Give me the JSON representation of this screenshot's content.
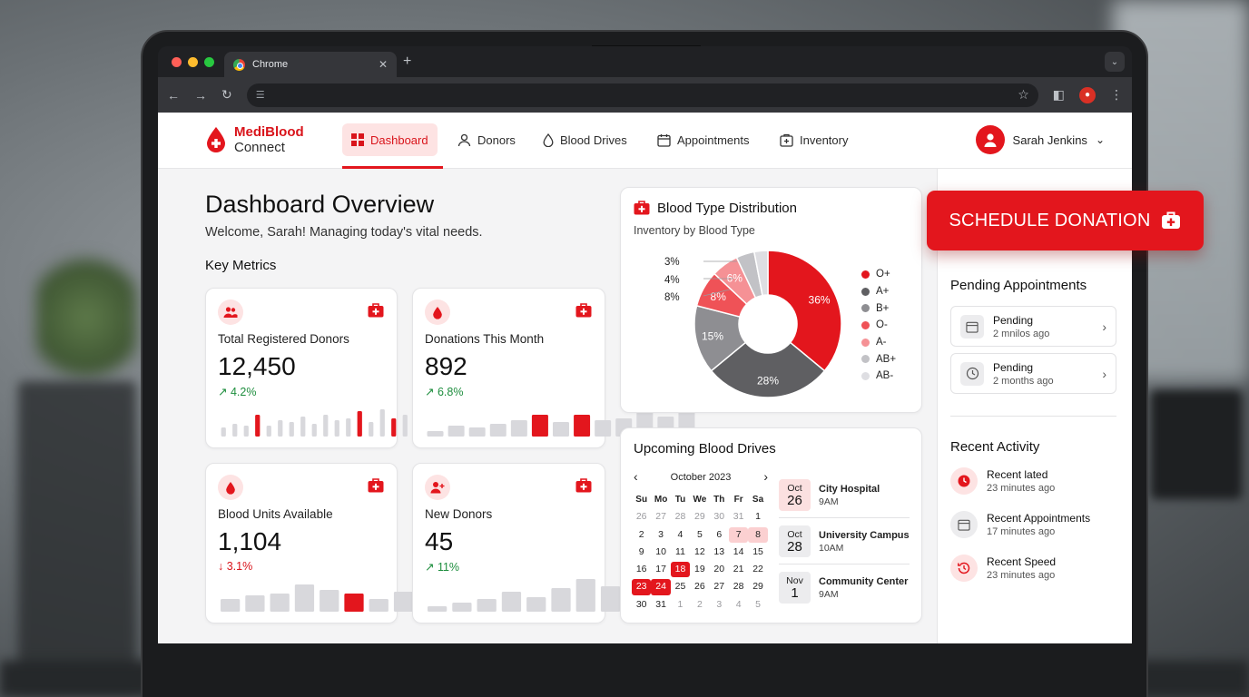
{
  "browser": {
    "tab_title": "Chrome",
    "tab_close": "✕",
    "new_tab": "+",
    "tab_menu": "⌄",
    "address": ""
  },
  "brand": {
    "line1": "MediBlood",
    "line2": "Connect",
    "color": "#d9141b"
  },
  "nav": {
    "items": [
      {
        "label": "Dashboard",
        "icon": "grid-icon",
        "active": true
      },
      {
        "label": "Donors",
        "icon": "person-icon"
      },
      {
        "label": "Blood Drives",
        "icon": "drop-icon"
      },
      {
        "label": "Appointments",
        "icon": "calendar-icon"
      },
      {
        "label": "Inventory",
        "icon": "medical-box-icon"
      }
    ],
    "user_name": "Sarah Jenkins"
  },
  "page": {
    "title": "Dashboard Overview",
    "welcome": "Welcome, Sarah! Managing today's vital needs.",
    "metrics_heading": "Key Metrics"
  },
  "metrics": [
    {
      "label": "Total Registered Donors",
      "value": "12,450",
      "trend": "↗ 4.2%",
      "direction": "up",
      "bars": [
        0.25,
        0.35,
        0.3,
        0.6,
        0.3,
        0.45,
        0.4,
        0.55,
        0.35,
        0.6,
        0.45,
        0.5,
        0.7,
        0.4,
        0.75,
        0.5,
        0.6,
        0.4,
        0.9,
        0.45,
        0.75,
        0.6,
        0.9,
        0.55
      ],
      "highlight": [
        3,
        12,
        15,
        18,
        22
      ]
    },
    {
      "label": "Donations This Month",
      "value": "892",
      "trend": "↗ 6.8%",
      "direction": "up",
      "bars": [
        0.15,
        0.3,
        0.25,
        0.35,
        0.45,
        0.6,
        0.4,
        0.6,
        0.45,
        0.5,
        0.7,
        0.55,
        0.9
      ],
      "highlight": [
        5,
        7
      ]
    },
    {
      "label": "Blood Units Available",
      "value": "1,104",
      "trend": "↓ 3.1%",
      "direction": "down",
      "bars": [
        0.35,
        0.45,
        0.5,
        0.75,
        0.6,
        0.5,
        0.35,
        0.55,
        0.7,
        0.45,
        0.85
      ],
      "highlight": [
        5
      ]
    },
    {
      "label": "New Donors",
      "value": "45",
      "trend": "↗ 11%",
      "direction": "up",
      "bars": [
        0.15,
        0.25,
        0.35,
        0.55,
        0.4,
        0.65,
        0.9,
        0.7,
        0.55,
        0.75,
        0.9
      ],
      "highlight": []
    }
  ],
  "pie": {
    "title": "Blood Type Distribution",
    "subtitle": "Inventory by Blood Type",
    "chart_data": {
      "type": "pie",
      "labels": [
        "O+",
        "A+",
        "B+",
        "O-",
        "A-",
        "AB+",
        "AB-"
      ],
      "values": [
        36,
        28,
        15,
        8,
        6,
        4,
        3
      ],
      "value_labels": [
        "36%",
        "28%",
        "15%",
        "8%",
        "6%",
        "4%",
        "3%"
      ],
      "colors": [
        "#e3161d",
        "#5f5f62",
        "#8e8e92",
        "#ef5257",
        "#f59195",
        "#c2c2c6",
        "#dedee2"
      ],
      "legend_position": "right"
    },
    "outside_labels": [
      "3%",
      "4%",
      "8%"
    ]
  },
  "drives": {
    "title": "Upcoming Blood Drives",
    "calendar": {
      "month": "October 2023",
      "prev": "‹",
      "next": "›",
      "dow": [
        "Su",
        "Mo",
        "Tu",
        "We",
        "Th",
        "Fr",
        "Sa"
      ],
      "days": [
        {
          "d": "26",
          "m": 1
        },
        {
          "d": "27",
          "m": 1
        },
        {
          "d": "28",
          "m": 1
        },
        {
          "d": "29",
          "m": 1
        },
        {
          "d": "30",
          "m": 1
        },
        {
          "d": "31",
          "m": 1
        },
        {
          "d": "1"
        },
        {
          "d": "2"
        },
        {
          "d": "3"
        },
        {
          "d": "4"
        },
        {
          "d": "5"
        },
        {
          "d": "6"
        },
        {
          "d": "7",
          "s": 1
        },
        {
          "d": "8",
          "s": 1
        },
        {
          "d": "9"
        },
        {
          "d": "10"
        },
        {
          "d": "11"
        },
        {
          "d": "12"
        },
        {
          "d": "13"
        },
        {
          "d": "14"
        },
        {
          "d": "15"
        },
        {
          "d": "16"
        },
        {
          "d": "17"
        },
        {
          "d": "18",
          "h": 1
        },
        {
          "d": "19"
        },
        {
          "d": "20"
        },
        {
          "d": "21"
        },
        {
          "d": "22"
        },
        {
          "d": "23",
          "h": 1
        },
        {
          "d": "24",
          "h": 1
        },
        {
          "d": "25"
        },
        {
          "d": "26"
        },
        {
          "d": "27"
        },
        {
          "d": "28"
        },
        {
          "d": "29"
        },
        {
          "d": "30"
        },
        {
          "d": "31"
        },
        {
          "d": "1",
          "m": 1
        },
        {
          "d": "2",
          "m": 1
        },
        {
          "d": "3",
          "m": 1
        },
        {
          "d": "4",
          "m": 1
        },
        {
          "d": "5",
          "m": 1
        }
      ]
    },
    "list": [
      {
        "month": "Oct",
        "day": "26",
        "name": "City Hospital",
        "time": "9AM"
      },
      {
        "month": "Oct",
        "day": "28",
        "name": "University Campus",
        "time": "10AM"
      },
      {
        "month": "Nov",
        "day": "1",
        "name": "Community Center",
        "time": "9AM"
      }
    ]
  },
  "cta": {
    "label": "SCHEDULE DONATION"
  },
  "pending": {
    "title": "Pending Appointments",
    "items": [
      {
        "title": "Pending",
        "time": "2 mnilos ago",
        "icon": "calendar-icon"
      },
      {
        "title": "Pending",
        "time": "2 months ago",
        "icon": "clock-icon"
      }
    ]
  },
  "activity": {
    "title": "Recent Activity",
    "items": [
      {
        "title": "Recent lated",
        "time": "23 minutes ago",
        "icon": "clock-icon",
        "accent": true
      },
      {
        "title": "Recent Appointments",
        "time": "17 minutes ago",
        "icon": "calendar-icon",
        "accent": false
      },
      {
        "title": "Recent Speed",
        "time": "23 minutes ago",
        "icon": "history-icon",
        "accent": true
      }
    ]
  }
}
